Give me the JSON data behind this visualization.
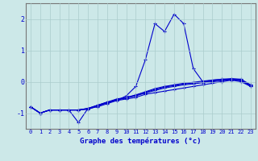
{
  "xlabel": "Graphe des températures (°c)",
  "x_hours": [
    0,
    1,
    2,
    3,
    4,
    5,
    6,
    7,
    8,
    9,
    10,
    11,
    12,
    13,
    14,
    15,
    16,
    17,
    18,
    19,
    20,
    21,
    22,
    23
  ],
  "lines": [
    [
      -0.8,
      -1.0,
      -0.9,
      -0.9,
      -0.9,
      -0.9,
      -0.85,
      -0.75,
      -0.65,
      -0.6,
      -0.55,
      -0.5,
      -0.4,
      -0.35,
      -0.3,
      -0.25,
      -0.2,
      -0.15,
      -0.1,
      -0.05,
      0.0,
      0.05,
      0.0,
      -0.15
    ],
    [
      -0.8,
      -1.0,
      -0.9,
      -0.9,
      -0.9,
      -0.9,
      -0.85,
      -0.75,
      -0.65,
      -0.55,
      -0.5,
      -0.42,
      -0.32,
      -0.22,
      -0.15,
      -0.1,
      -0.05,
      -0.02,
      0.02,
      0.05,
      0.08,
      0.1,
      0.08,
      -0.1
    ],
    [
      -0.8,
      -1.0,
      -0.9,
      -0.9,
      -0.9,
      -1.3,
      -0.85,
      -0.8,
      -0.7,
      -0.6,
      -0.45,
      -0.15,
      0.7,
      1.85,
      1.6,
      2.15,
      1.85,
      0.42,
      0.0,
      0.05,
      0.08,
      0.07,
      0.07,
      -0.15
    ],
    [
      -0.8,
      -1.0,
      -0.9,
      -0.9,
      -0.9,
      -0.9,
      -0.88,
      -0.78,
      -0.67,
      -0.58,
      -0.52,
      -0.45,
      -0.36,
      -0.28,
      -0.2,
      -0.15,
      -0.1,
      -0.07,
      -0.03,
      0.0,
      0.03,
      0.07,
      0.03,
      -0.12
    ],
    [
      -0.8,
      -1.0,
      -0.9,
      -0.9,
      -0.9,
      -0.9,
      -0.86,
      -0.76,
      -0.66,
      -0.57,
      -0.51,
      -0.43,
      -0.34,
      -0.25,
      -0.17,
      -0.12,
      -0.07,
      -0.04,
      -0.01,
      0.02,
      0.05,
      0.08,
      0.04,
      -0.12
    ]
  ],
  "line_color": "#0000cc",
  "bg_color": "#cce8e8",
  "grid_color": "#aacccc",
  "ylim": [
    -1.5,
    2.5
  ],
  "yticks": [
    -1,
    0,
    1,
    2
  ],
  "marker": "+",
  "markersize": 3,
  "linewidth": 0.8,
  "label_fontsize": 5.0,
  "xlabel_fontsize": 6.5
}
